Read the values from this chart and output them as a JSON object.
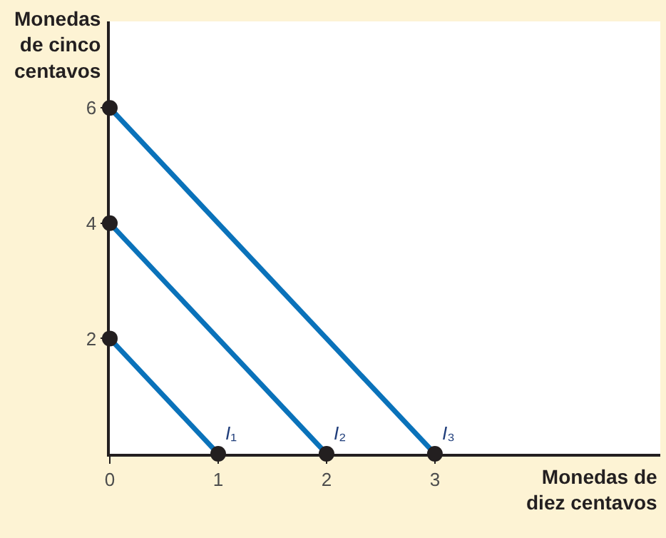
{
  "chart_data": {
    "type": "line",
    "xlabel": "Monedas de\ndiez centavos",
    "ylabel": "Monedas\nde cinco\ncentavos",
    "series": [
      {
        "name": "I₁",
        "color": "#0a72ba",
        "x": [
          0,
          1
        ],
        "values": [
          2,
          0
        ]
      },
      {
        "name": "I₂",
        "color": "#0a72ba",
        "x": [
          0,
          2
        ],
        "values": [
          4,
          0
        ]
      },
      {
        "name": "I₃",
        "color": "#0a72ba",
        "x": [
          0,
          3
        ],
        "values": [
          6,
          0
        ]
      },
      {
        "type": "scatter",
        "color": "#231f20",
        "marker": "circle",
        "x": [
          0,
          1,
          0,
          2,
          0,
          3
        ],
        "values": [
          2,
          0,
          4,
          0,
          6,
          0
        ]
      }
    ],
    "xlim": [
      0,
      5.08
    ],
    "ylim": [
      0,
      7.5
    ],
    "xticks": [
      0,
      1,
      2,
      3
    ],
    "yticks": [
      2,
      4,
      6
    ],
    "marker": "none",
    "line_style": "solid",
    "grid": false,
    "legend": false
  }
}
